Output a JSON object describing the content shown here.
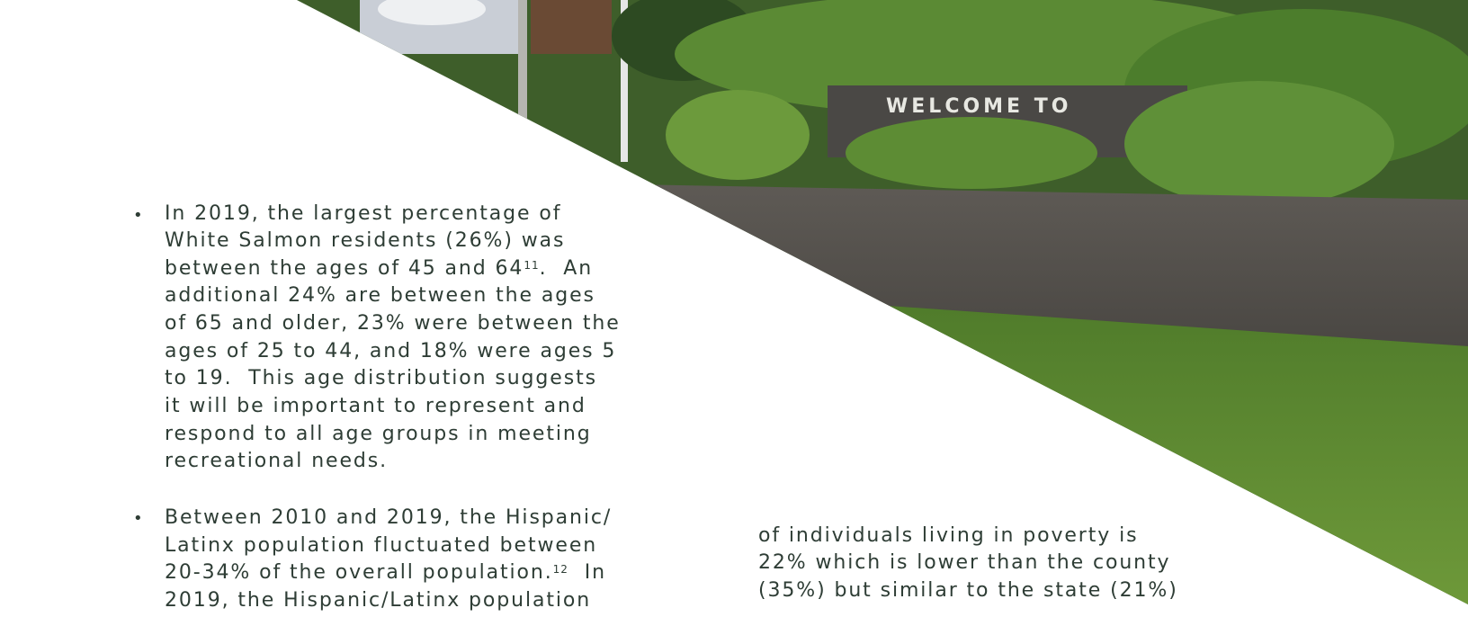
{
  "photo": {
    "sign": "WELCOME TO"
  },
  "bullets": [
    {
      "lines": [
        {
          "text": "In 2019, the largest percentage of"
        },
        {
          "text": "White Salmon residents (26%) was"
        },
        {
          "text": "between the ages of 45 and 64",
          "sup": "11",
          "rest": ".  An"
        },
        {
          "text": "additional 24% are between the ages"
        },
        {
          "text": "of 65 and older, 23% were between the"
        },
        {
          "text": "ages of 25 to 44, and 18% were ages 5"
        },
        {
          "text": "to 19.  This age distribution suggests"
        },
        {
          "text": "it will be important to represent and"
        },
        {
          "text": "respond to all age groups in meeting"
        },
        {
          "text": "recreational needs."
        }
      ]
    },
    {
      "lines": [
        {
          "text": "Between 2010 and 2019, the Hispanic/"
        },
        {
          "text": "Latinx population fluctuated between"
        },
        {
          "text": "20-34% of the overall population.",
          "sup": "12",
          "rest": "  In"
        },
        {
          "text": "2019, the Hispanic/Latinx population"
        }
      ]
    }
  ],
  "right_column": {
    "lines": [
      "of individuals living in poverty is",
      "22% which is lower than the county",
      "(35%) but similar to the state (21%)"
    ]
  }
}
